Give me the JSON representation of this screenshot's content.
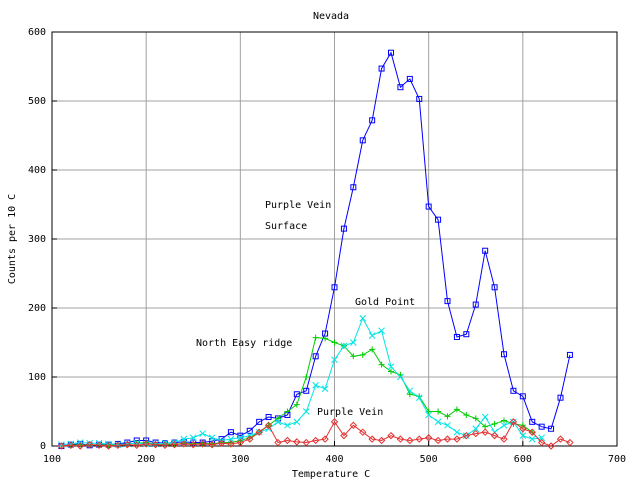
{
  "chart_data": {
    "type": "line",
    "title": "Nevada",
    "x_label": "Temperature  C",
    "y_label": "Counts per 10 C",
    "xlim": [
      100,
      700
    ],
    "ylim": [
      0,
      600
    ],
    "xticks": [
      100,
      200,
      300,
      400,
      500,
      600,
      700
    ],
    "yticks": [
      0,
      100,
      200,
      300,
      400,
      500,
      600
    ],
    "grid": true,
    "annotations": [
      "Purple Vein",
      "Surface",
      "Gold Point",
      "North Easy ridge",
      "Purple Vein"
    ],
    "x": [
      110,
      120,
      130,
      140,
      150,
      160,
      170,
      180,
      190,
      200,
      210,
      220,
      230,
      240,
      250,
      260,
      270,
      280,
      290,
      300,
      310,
      320,
      330,
      340,
      350,
      360,
      370,
      380,
      390,
      400,
      410,
      420,
      430,
      440,
      450,
      460,
      470,
      480,
      490,
      500,
      510,
      520,
      530,
      540,
      550,
      560,
      570,
      580,
      590,
      600,
      610,
      620,
      630,
      640,
      650
    ],
    "series": [
      {
        "color": "#0000ff",
        "marker": "square",
        "values": [
          0,
          2,
          3,
          1,
          2,
          2,
          3,
          5,
          8,
          8,
          5,
          4,
          5,
          6,
          5,
          5,
          7,
          10,
          20,
          15,
          22,
          35,
          42,
          40,
          45,
          75,
          80,
          130,
          163,
          230,
          315,
          375,
          443,
          472,
          547,
          570,
          520,
          532,
          503,
          347,
          328,
          210,
          158,
          162,
          205,
          283,
          230,
          133,
          80,
          72,
          35,
          28,
          25,
          70,
          132
        ]
      },
      {
        "color": "#00cc00",
        "marker": "plus",
        "values": [
          0,
          1,
          2,
          1,
          2,
          1,
          2,
          3,
          4,
          5,
          3,
          3,
          2,
          4,
          3,
          4,
          3,
          5,
          5,
          8,
          12,
          20,
          30,
          40,
          50,
          60,
          100,
          157,
          156,
          150,
          145,
          130,
          132,
          140,
          118,
          108,
          103,
          75,
          72,
          50,
          50,
          43,
          53,
          45,
          40,
          28,
          32,
          37,
          32,
          30,
          20,
          null,
          null,
          null,
          null
        ]
      },
      {
        "color": "#00e5e5",
        "marker": "cross",
        "values": [
          2,
          3,
          5,
          4,
          4,
          3,
          2,
          3,
          4,
          3,
          3,
          4,
          5,
          10,
          12,
          18,
          12,
          8,
          10,
          12,
          15,
          20,
          25,
          35,
          30,
          35,
          50,
          88,
          83,
          125,
          145,
          150,
          185,
          160,
          167,
          115,
          100,
          80,
          70,
          45,
          35,
          30,
          20,
          15,
          25,
          42,
          20,
          30,
          35,
          15,
          10,
          12,
          null,
          null,
          null
        ]
      },
      {
        "color": "#e53030",
        "marker": "diamond",
        "values": [
          0,
          1,
          0,
          2,
          1,
          0,
          1,
          2,
          1,
          3,
          2,
          1,
          2,
          3,
          2,
          3,
          2,
          4,
          3,
          5,
          10,
          20,
          30,
          5,
          8,
          6,
          5,
          8,
          10,
          35,
          15,
          30,
          20,
          10,
          8,
          15,
          10,
          8,
          10,
          12,
          8,
          10,
          10,
          15,
          18,
          20,
          15,
          10,
          35,
          25,
          20,
          5,
          0,
          10,
          5
        ]
      }
    ]
  }
}
